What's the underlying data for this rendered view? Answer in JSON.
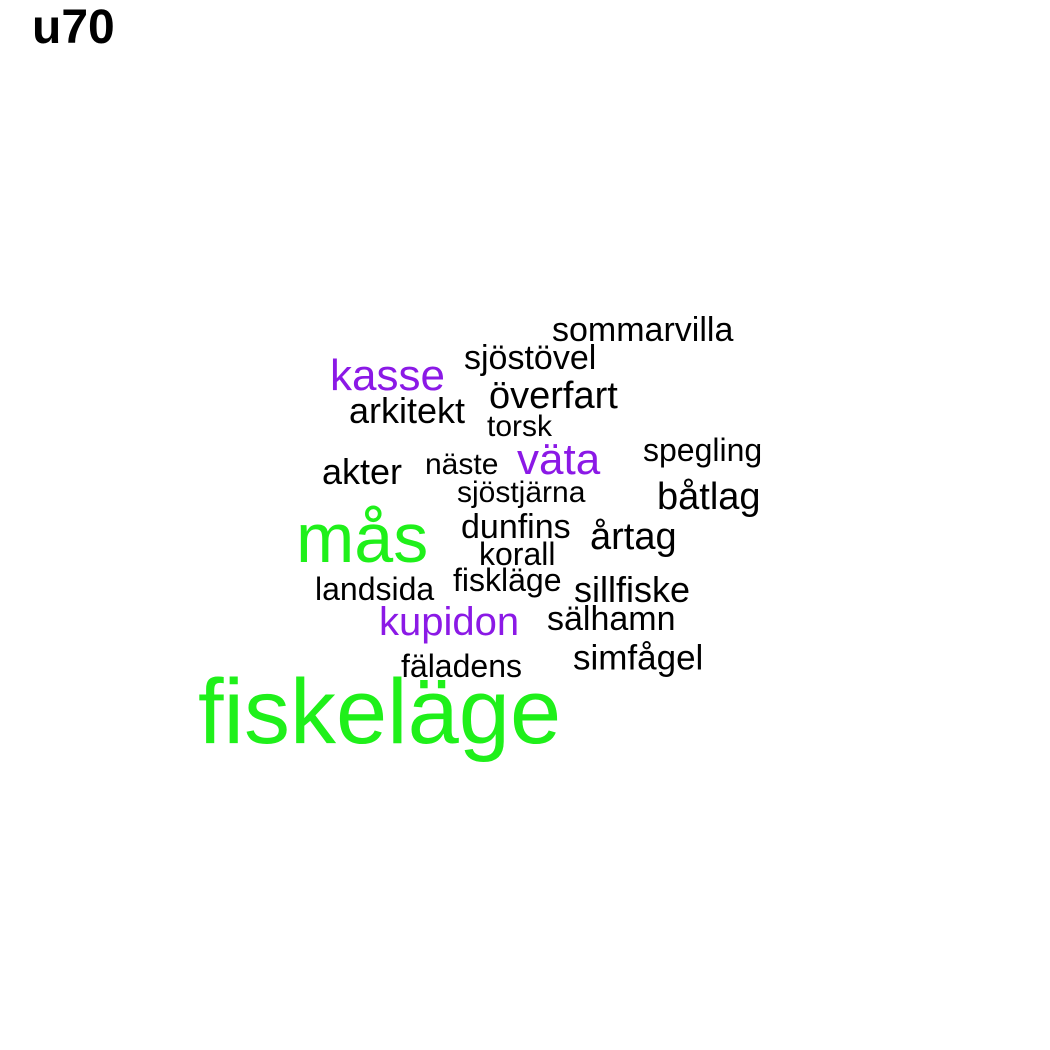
{
  "title": "u70",
  "colors": {
    "large": "#1ff01a",
    "medium": "#8b19e6",
    "small": "#000000"
  },
  "words": [
    {
      "text": "fiskeläge",
      "weight": "large"
    },
    {
      "text": "mås",
      "weight": "large"
    },
    {
      "text": "kasse",
      "weight": "medium"
    },
    {
      "text": "väta",
      "weight": "medium"
    },
    {
      "text": "kupidon",
      "weight": "medium"
    },
    {
      "text": "sommarvilla",
      "weight": "small"
    },
    {
      "text": "sjöstövel",
      "weight": "small"
    },
    {
      "text": "överfart",
      "weight": "small"
    },
    {
      "text": "arkitekt",
      "weight": "small"
    },
    {
      "text": "torsk",
      "weight": "small"
    },
    {
      "text": "spegling",
      "weight": "small"
    },
    {
      "text": "akter",
      "weight": "small"
    },
    {
      "text": "näste",
      "weight": "small"
    },
    {
      "text": "sjöstjärna",
      "weight": "small"
    },
    {
      "text": "båtlag",
      "weight": "small"
    },
    {
      "text": "dunfins",
      "weight": "small"
    },
    {
      "text": "årtag",
      "weight": "small"
    },
    {
      "text": "korall",
      "weight": "small"
    },
    {
      "text": "landsida",
      "weight": "small"
    },
    {
      "text": "fiskläge",
      "weight": "small"
    },
    {
      "text": "sillfiske",
      "weight": "small"
    },
    {
      "text": "sälhamn",
      "weight": "small"
    },
    {
      "text": "simfågel",
      "weight": "small"
    },
    {
      "text": "fäladens",
      "weight": "small"
    }
  ]
}
